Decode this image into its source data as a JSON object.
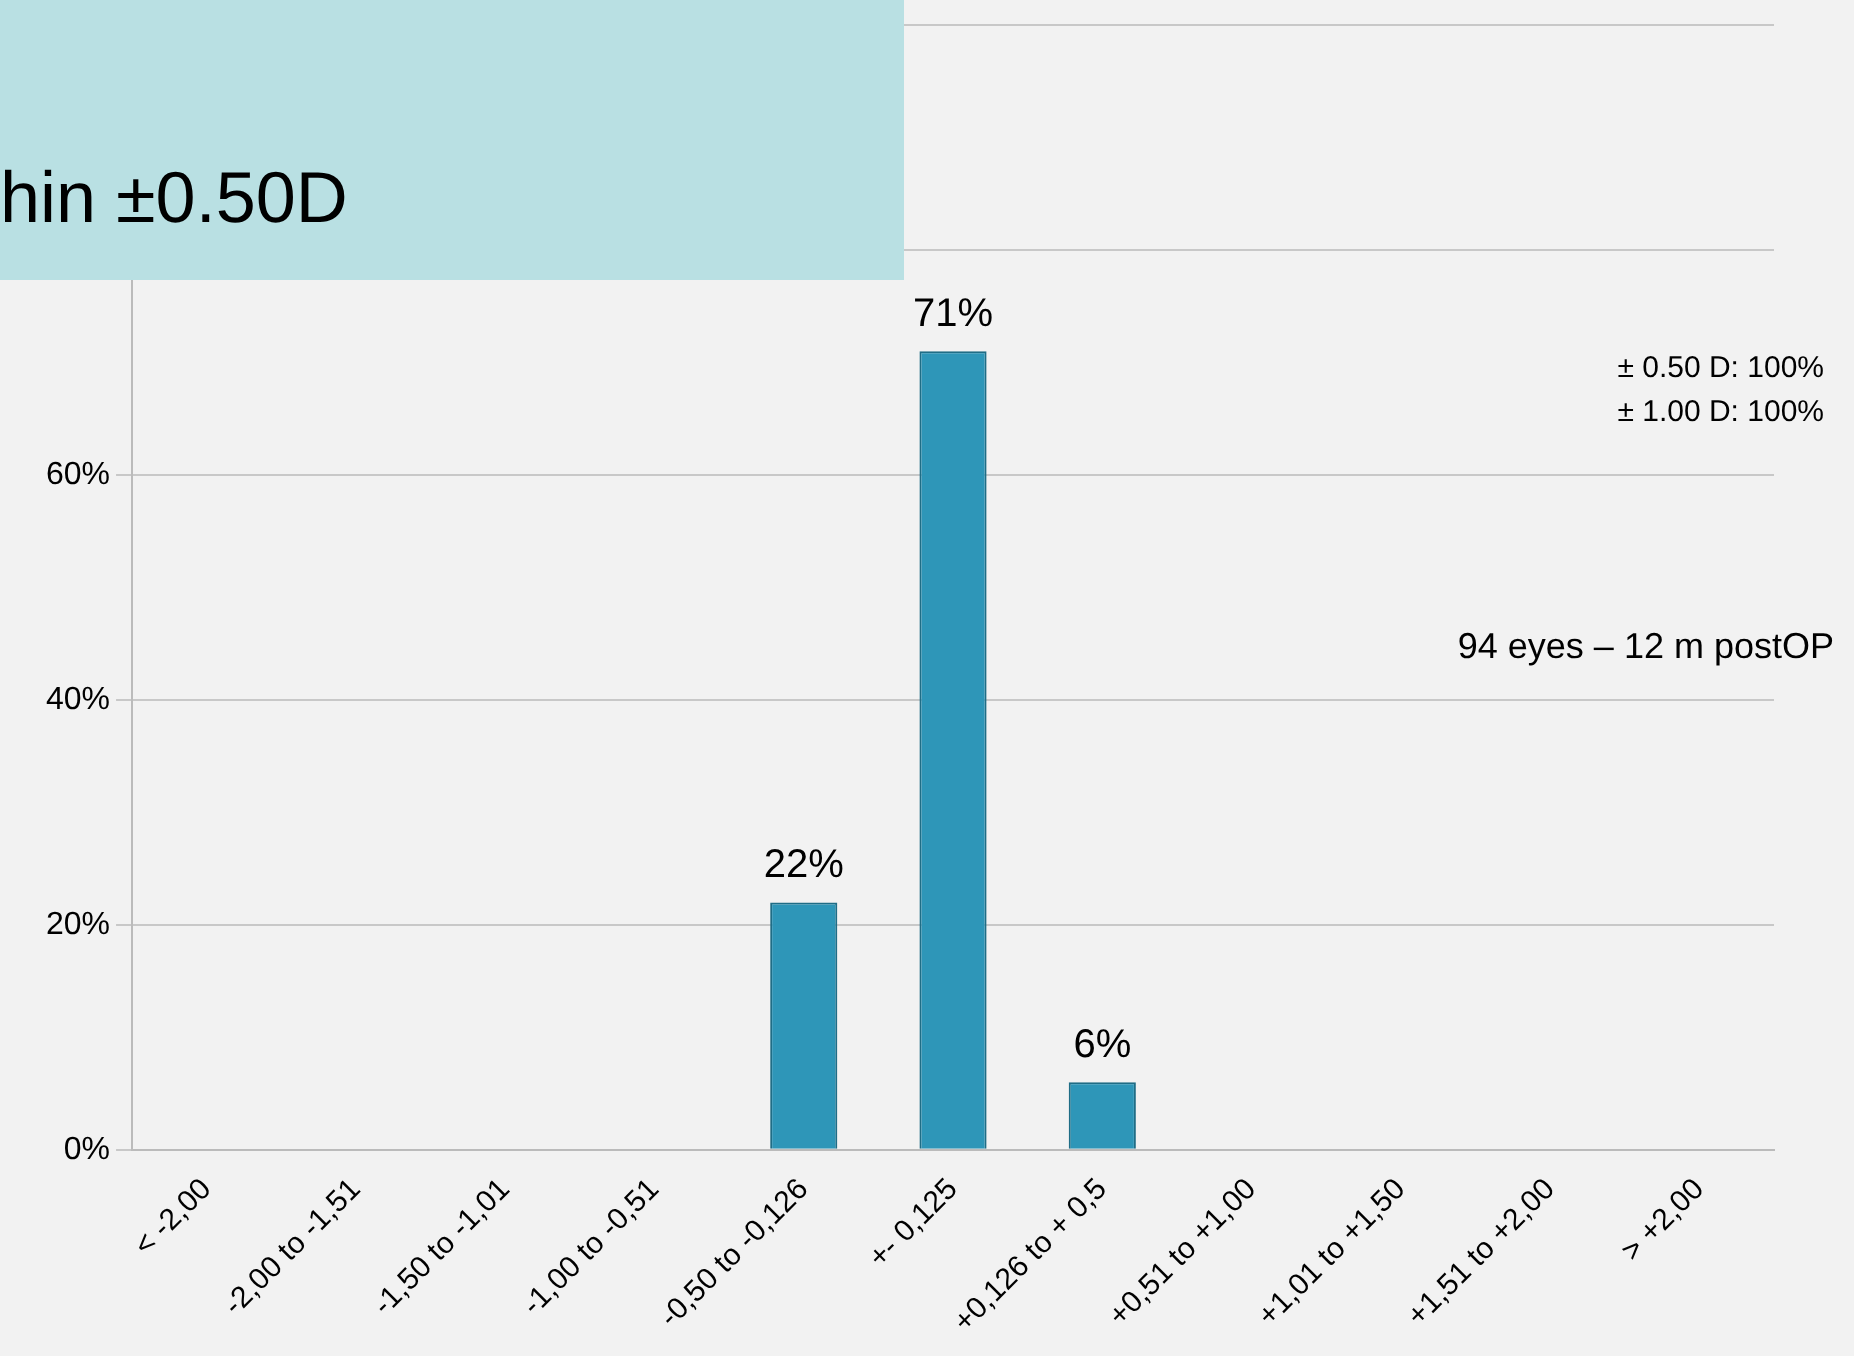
{
  "chart_data": {
    "type": "bar",
    "categories": [
      "< -2,00",
      "-2,00 to -1,51",
      "-1,50 to -1,01",
      "-1,00 to -0,51",
      "-0,50 to -0,126",
      "+- 0,125",
      "+0,126 to + 0,5",
      "+0,51 to +1,00",
      "+1,01 to +1,50",
      "+1,51 to +2,00",
      "> +2,00"
    ],
    "values": [
      0,
      0,
      0,
      0,
      22,
      71,
      6,
      0,
      0,
      0,
      0
    ],
    "value_labels": [
      null,
      null,
      null,
      null,
      "22%",
      "71%",
      "6%",
      null,
      null,
      null,
      null
    ],
    "color": "#2e96b8",
    "ylim": [
      0,
      100
    ],
    "yticks": [
      {
        "value": 0,
        "label": "0%"
      },
      {
        "value": 20,
        "label": "20%"
      },
      {
        "value": 40,
        "label": "40%"
      },
      {
        "value": 60,
        "label": "60%"
      },
      {
        "value": 80,
        "label": null
      },
      {
        "value": 100,
        "label": null
      }
    ],
    "grid": "y",
    "legend": false,
    "annotations": [
      "hin ±0.50D",
      "± 0.50 D: 100%",
      "± 1.00 D: 100%",
      "94 eyes – 12 m postOP"
    ]
  }
}
